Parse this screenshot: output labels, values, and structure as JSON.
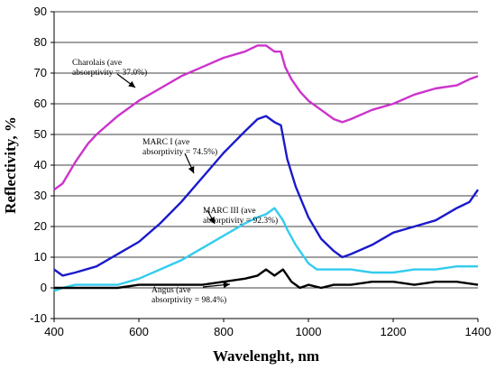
{
  "chart_data": {
    "type": "line",
    "title": "",
    "xlabel": "Wavelenght, nm",
    "ylabel": "Reflectivity, %",
    "xlim": [
      400,
      1400
    ],
    "ylim": [
      -10,
      90
    ],
    "x_ticks": [
      400,
      600,
      800,
      1000,
      1200,
      1400
    ],
    "y_ticks": [
      -10,
      0,
      10,
      20,
      30,
      40,
      50,
      60,
      70,
      80,
      90
    ],
    "grid": "horizontal",
    "series": [
      {
        "name": "Charolais",
        "color": "#cc33cc",
        "x": [
          400,
          420,
          450,
          480,
          500,
          550,
          600,
          650,
          700,
          750,
          800,
          850,
          880,
          900,
          920,
          935,
          945,
          960,
          980,
          1000,
          1030,
          1060,
          1080,
          1100,
          1150,
          1200,
          1250,
          1300,
          1350,
          1380,
          1400
        ],
        "y": [
          32,
          34,
          41,
          47,
          50,
          56,
          61,
          65,
          69,
          72,
          75,
          77,
          79,
          79,
          77,
          77,
          72,
          68,
          64,
          61,
          58,
          55,
          54,
          55,
          58,
          60,
          63,
          65,
          66,
          68,
          69
        ]
      },
      {
        "name": "MARC I",
        "color": "#1a1acc",
        "x": [
          400,
          420,
          450,
          500,
          550,
          600,
          650,
          700,
          750,
          800,
          850,
          880,
          900,
          920,
          935,
          950,
          970,
          1000,
          1030,
          1060,
          1080,
          1100,
          1150,
          1200,
          1250,
          1300,
          1350,
          1380,
          1400
        ],
        "y": [
          6,
          4,
          5,
          7,
          11,
          15,
          21,
          28,
          36,
          44,
          51,
          55,
          56,
          54,
          53,
          42,
          33,
          23,
          16,
          12,
          10,
          11,
          14,
          18,
          20,
          22,
          26,
          28,
          32
        ]
      },
      {
        "name": "MARC III",
        "color": "#33ccee",
        "x": [
          400,
          420,
          450,
          500,
          550,
          600,
          650,
          700,
          750,
          800,
          850,
          880,
          900,
          920,
          940,
          950,
          970,
          1000,
          1020,
          1050,
          1100,
          1150,
          1200,
          1250,
          1300,
          1350,
          1400
        ],
        "y": [
          -1,
          0,
          1,
          1,
          1,
          3,
          6,
          9,
          13,
          17,
          21,
          23,
          24,
          26,
          22,
          19,
          14,
          8,
          6,
          6,
          6,
          5,
          5,
          6,
          6,
          7,
          7
        ]
      },
      {
        "name": "Angus",
        "color": "#000000",
        "x": [
          400,
          450,
          500,
          550,
          600,
          650,
          700,
          750,
          800,
          850,
          880,
          900,
          920,
          940,
          960,
          980,
          1000,
          1030,
          1060,
          1100,
          1150,
          1200,
          1250,
          1300,
          1350,
          1400
        ],
        "y": [
          0,
          0,
          0,
          0,
          1,
          1,
          1,
          1,
          2,
          3,
          4,
          6,
          4,
          6,
          2,
          0,
          1,
          0,
          1,
          1,
          2,
          2,
          1,
          2,
          2,
          1
        ]
      }
    ],
    "annotations": [
      {
        "lines": [
          "Charolais (ave",
          "absorptivity = 37.0%)"
        ],
        "series": "Charolais"
      },
      {
        "lines": [
          "MARC I (ave",
          "absorptivity = 74.5%)"
        ],
        "series": "MARC I"
      },
      {
        "lines": [
          "MARC III (ave",
          "absorptivity = 92.3%)"
        ],
        "series": "MARC III"
      },
      {
        "lines": [
          "Angus (ave",
          "absorptivity = 98.4%)"
        ],
        "series": "Angus"
      }
    ]
  }
}
